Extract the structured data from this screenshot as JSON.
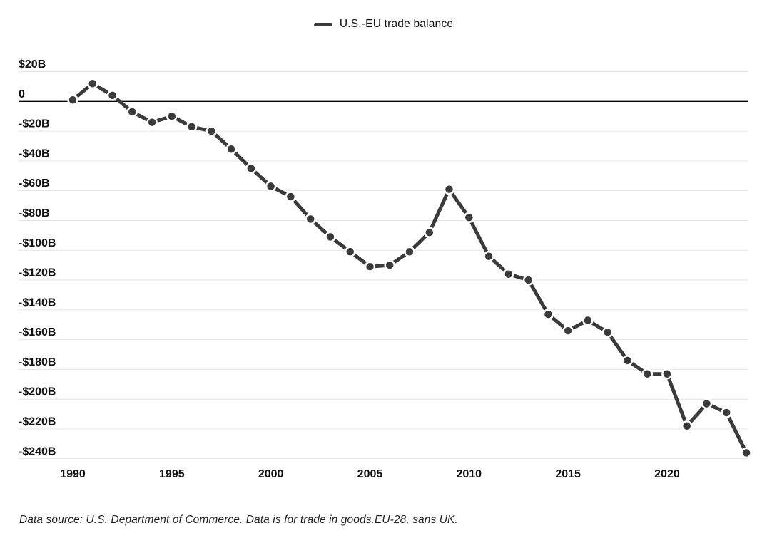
{
  "legend": {
    "label": "U.S.-EU trade balance",
    "swatch_color": "#3b3b3b"
  },
  "footer": {
    "note": "Data source: U.S. Department of Commerce. Data is for trade in goods.EU-28, sans UK."
  },
  "chart_data": {
    "type": "line",
    "title": "",
    "xlabel": "",
    "ylabel": "",
    "units": "USD billions",
    "legend_position": "top-center",
    "grid": "horizontal",
    "zero_line": true,
    "x": [
      1990,
      1991,
      1992,
      1993,
      1994,
      1995,
      1996,
      1997,
      1998,
      1999,
      2000,
      2001,
      2002,
      2003,
      2004,
      2005,
      2006,
      2007,
      2008,
      2009,
      2010,
      2011,
      2012,
      2013,
      2014,
      2015,
      2016,
      2017,
      2018,
      2019,
      2020,
      2021,
      2022,
      2023,
      2024
    ],
    "series": [
      {
        "name": "U.S.-EU trade balance",
        "values": [
          1,
          12,
          4,
          -7,
          -14,
          -10,
          -17,
          -20,
          -32,
          -45,
          -57,
          -64,
          -79,
          -91,
          -101,
          -111,
          -110,
          -101,
          -88,
          -59,
          -78,
          -104,
          -116,
          -120,
          -143,
          -154,
          -147,
          -155,
          -174,
          -183,
          -183,
          -218,
          -203,
          -209,
          -236
        ]
      }
    ],
    "x_tick_labels": [
      "1990",
      "1995",
      "2000",
      "2005",
      "2010",
      "2015",
      "2020"
    ],
    "x_tick_values": [
      1990,
      1995,
      2000,
      2005,
      2010,
      2015,
      2020
    ],
    "y_tick_labels": [
      "$20B",
      "0",
      "-$20B",
      "-$40B",
      "-$60B",
      "-$80B",
      "-$100B",
      "-$120B",
      "-$140B",
      "-$160B",
      "-$180B",
      "-$200B",
      "-$220B",
      "-$240B"
    ],
    "y_tick_values": [
      20,
      0,
      -20,
      -40,
      -60,
      -80,
      -100,
      -120,
      -140,
      -160,
      -180,
      -200,
      -220,
      -240
    ],
    "ylim": [
      -240,
      20
    ],
    "xlim": [
      1990,
      2024
    ],
    "colors": {
      "line": "#3b3b3b",
      "marker": "#3b3b3b",
      "marker_halo": "#ffffff",
      "grid": "#e4e4e4",
      "zero_line": "#000000",
      "axis_text": "#111111"
    }
  }
}
